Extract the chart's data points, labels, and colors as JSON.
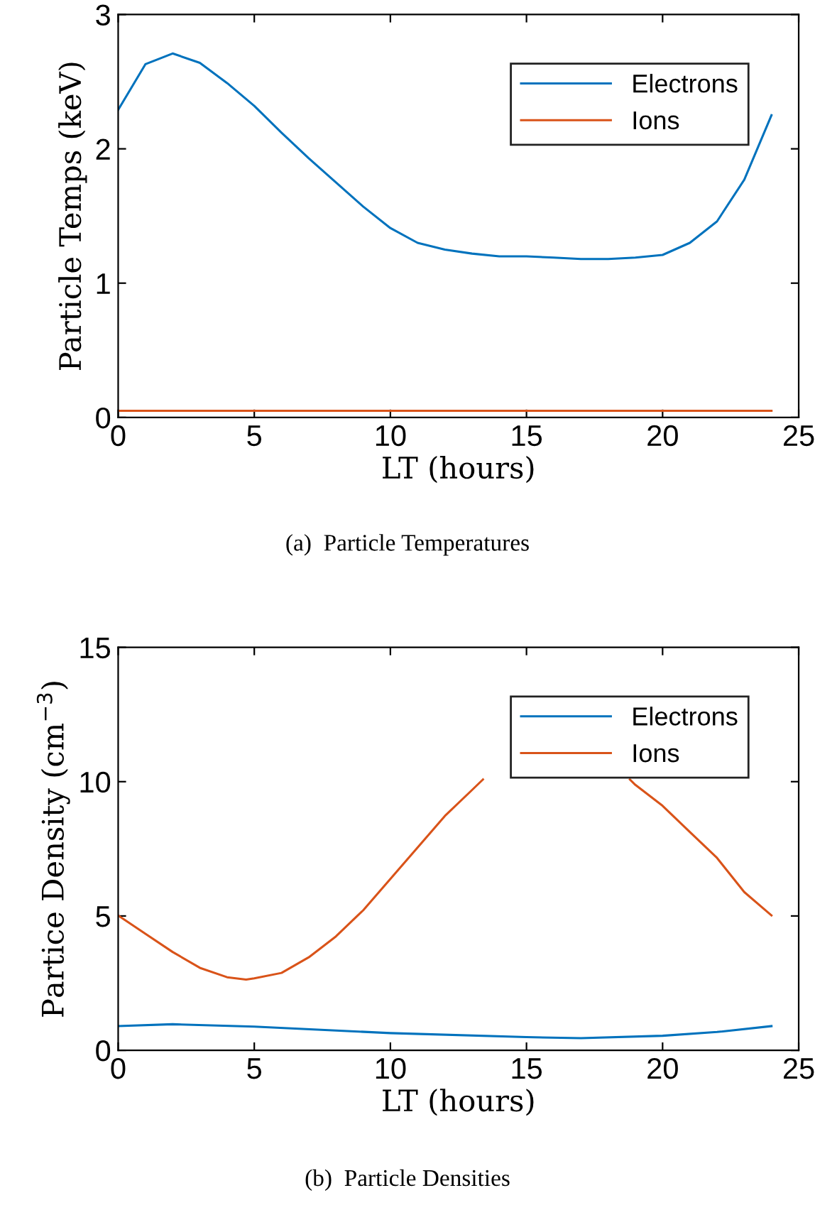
{
  "chart_data": [
    {
      "type": "line",
      "xlabel": "LT (hours)",
      "ylabel": "Particle Temps (keV)",
      "annotations": [
        "(a)  Particle Temperatures"
      ],
      "xlim": [
        0,
        25
      ],
      "ylim": [
        0,
        3
      ],
      "xticks": [
        0,
        5,
        10,
        15,
        20,
        25
      ],
      "yticks": [
        0,
        1,
        2,
        3
      ],
      "legend": "top right",
      "grid": false,
      "series": [
        {
          "name": "Electrons",
          "color": "#0072bd",
          "x": [
            0,
            1,
            2,
            3,
            4,
            5,
            6,
            7,
            8,
            9,
            10,
            11,
            12,
            13,
            14,
            15,
            16,
            17,
            18,
            19,
            20,
            21,
            22,
            23,
            24
          ],
          "values": [
            2.29,
            2.63,
            2.71,
            2.64,
            2.49,
            2.32,
            2.12,
            1.93,
            1.75,
            1.57,
            1.41,
            1.3,
            1.25,
            1.22,
            1.2,
            1.2,
            1.19,
            1.18,
            1.18,
            1.19,
            1.21,
            1.3,
            1.46,
            1.77,
            2.25
          ]
        },
        {
          "name": "Ions",
          "color": "#d95319",
          "x": [
            0,
            24
          ],
          "values": [
            0.05,
            0.05
          ]
        }
      ]
    },
    {
      "type": "line",
      "xlabel": "LT (hours)",
      "ylabel": "Partice Density (cm$^{−3}$)",
      "annotations": [
        "(b)  Particle Densities"
      ],
      "xlim": [
        0,
        25
      ],
      "ylim": [
        0,
        15
      ],
      "xticks": [
        0,
        5,
        10,
        15,
        20,
        25
      ],
      "yticks": [
        0,
        5,
        10,
        15
      ],
      "legend": "top right",
      "grid": false,
      "series": [
        {
          "name": "Electrons",
          "color": "#0072bd",
          "x": [
            0,
            2,
            5,
            10,
            15,
            17,
            20,
            22,
            24
          ],
          "values": [
            0.9,
            0.97,
            0.88,
            0.64,
            0.49,
            0.45,
            0.54,
            0.68,
            0.9
          ]
        },
        {
          "name": "Ions",
          "color": "#d95319",
          "x": [
            0,
            1,
            2,
            3,
            4,
            4.7,
            5,
            6,
            7,
            8,
            9,
            10,
            11,
            12,
            13,
            13.4,
            14,
            15,
            16,
            17,
            18,
            18.8,
            19,
            20,
            21,
            22,
            23,
            24
          ],
          "values": [
            5.02,
            4.34,
            3.66,
            3.07,
            2.72,
            2.63,
            2.68,
            2.88,
            3.46,
            4.24,
            5.21,
            6.38,
            7.55,
            8.72,
            9.69,
            10.08,
            null,
            null,
            null,
            null,
            null,
            10.08,
            9.88,
            9.1,
            8.13,
            7.16,
            5.89,
            5.02
          ]
        }
      ]
    }
  ]
}
